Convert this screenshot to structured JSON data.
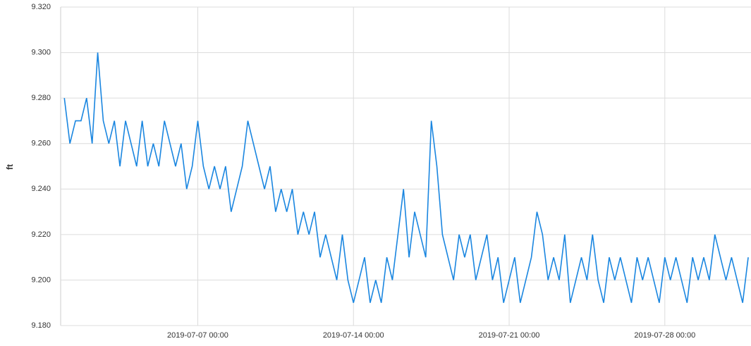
{
  "chart_data": {
    "type": "line",
    "y_label": "ft",
    "x": [
      "2019-07-01 00:00",
      "2019-07-01 06:00",
      "2019-07-01 12:00",
      "2019-07-01 18:00",
      "2019-07-02 00:00",
      "2019-07-02 06:00",
      "2019-07-02 12:00",
      "2019-07-02 18:00",
      "2019-07-03 00:00",
      "2019-07-03 06:00",
      "2019-07-03 12:00",
      "2019-07-03 18:00",
      "2019-07-04 00:00",
      "2019-07-04 06:00",
      "2019-07-04 12:00",
      "2019-07-04 18:00",
      "2019-07-05 00:00",
      "2019-07-05 06:00",
      "2019-07-05 12:00",
      "2019-07-05 18:00",
      "2019-07-06 00:00",
      "2019-07-06 06:00",
      "2019-07-06 12:00",
      "2019-07-06 18:00",
      "2019-07-07 00:00",
      "2019-07-07 06:00",
      "2019-07-07 12:00",
      "2019-07-07 18:00",
      "2019-07-08 00:00",
      "2019-07-08 06:00",
      "2019-07-08 12:00",
      "2019-07-08 18:00",
      "2019-07-09 00:00",
      "2019-07-09 06:00",
      "2019-07-09 12:00",
      "2019-07-09 18:00",
      "2019-07-10 00:00",
      "2019-07-10 06:00",
      "2019-07-10 12:00",
      "2019-07-10 18:00",
      "2019-07-11 00:00",
      "2019-07-11 06:00",
      "2019-07-11 12:00",
      "2019-07-11 18:00",
      "2019-07-12 00:00",
      "2019-07-12 06:00",
      "2019-07-12 12:00",
      "2019-07-12 18:00",
      "2019-07-13 00:00",
      "2019-07-13 06:00",
      "2019-07-13 12:00",
      "2019-07-13 18:00",
      "2019-07-14 00:00",
      "2019-07-14 06:00",
      "2019-07-14 12:00",
      "2019-07-14 18:00",
      "2019-07-15 00:00",
      "2019-07-15 06:00",
      "2019-07-15 12:00",
      "2019-07-15 18:00",
      "2019-07-16 00:00",
      "2019-07-16 06:00",
      "2019-07-16 12:00",
      "2019-07-16 18:00",
      "2019-07-17 00:00",
      "2019-07-17 06:00",
      "2019-07-17 12:00",
      "2019-07-17 18:00",
      "2019-07-18 00:00",
      "2019-07-18 06:00",
      "2019-07-18 12:00",
      "2019-07-18 18:00",
      "2019-07-19 00:00",
      "2019-07-19 06:00",
      "2019-07-19 12:00",
      "2019-07-19 18:00",
      "2019-07-20 00:00",
      "2019-07-20 06:00",
      "2019-07-20 12:00",
      "2019-07-20 18:00",
      "2019-07-21 00:00",
      "2019-07-21 06:00",
      "2019-07-21 12:00",
      "2019-07-21 18:00",
      "2019-07-22 00:00",
      "2019-07-22 06:00",
      "2019-07-22 12:00",
      "2019-07-22 18:00",
      "2019-07-23 00:00",
      "2019-07-23 06:00",
      "2019-07-23 12:00",
      "2019-07-23 18:00",
      "2019-07-24 00:00",
      "2019-07-24 06:00",
      "2019-07-24 12:00",
      "2019-07-24 18:00",
      "2019-07-25 00:00",
      "2019-07-25 06:00",
      "2019-07-25 12:00",
      "2019-07-25 18:00",
      "2019-07-26 00:00",
      "2019-07-26 06:00",
      "2019-07-26 12:00",
      "2019-07-26 18:00",
      "2019-07-27 00:00",
      "2019-07-27 06:00",
      "2019-07-27 12:00",
      "2019-07-27 18:00",
      "2019-07-28 00:00",
      "2019-07-28 06:00",
      "2019-07-28 12:00",
      "2019-07-28 18:00",
      "2019-07-29 00:00",
      "2019-07-29 06:00",
      "2019-07-29 12:00",
      "2019-07-29 18:00",
      "2019-07-30 00:00",
      "2019-07-30 06:00",
      "2019-07-30 12:00",
      "2019-07-30 18:00",
      "2019-07-31 00:00",
      "2019-07-31 06:00",
      "2019-07-31 12:00",
      "2019-07-31 18:00"
    ],
    "series": [
      {
        "color": "#1a86e0",
        "values": [
          9.28,
          9.26,
          9.27,
          9.27,
          9.28,
          9.26,
          9.3,
          9.27,
          9.26,
          9.27,
          9.25,
          9.27,
          9.26,
          9.25,
          9.27,
          9.25,
          9.26,
          9.25,
          9.27,
          9.26,
          9.25,
          9.26,
          9.24,
          9.25,
          9.27,
          9.25,
          9.24,
          9.25,
          9.24,
          9.25,
          9.23,
          9.24,
          9.25,
          9.27,
          9.26,
          9.25,
          9.24,
          9.25,
          9.23,
          9.24,
          9.23,
          9.24,
          9.22,
          9.23,
          9.22,
          9.23,
          9.21,
          9.22,
          9.21,
          9.2,
          9.22,
          9.2,
          9.19,
          9.2,
          9.21,
          9.19,
          9.2,
          9.19,
          9.21,
          9.2,
          9.22,
          9.24,
          9.21,
          9.23,
          9.22,
          9.21,
          9.27,
          9.25,
          9.22,
          9.21,
          9.2,
          9.22,
          9.21,
          9.22,
          9.2,
          9.21,
          9.22,
          9.2,
          9.21,
          9.19,
          9.2,
          9.21,
          9.19,
          9.2,
          9.21,
          9.23,
          9.22,
          9.2,
          9.21,
          9.2,
          9.22,
          9.19,
          9.2,
          9.21,
          9.2,
          9.22,
          9.2,
          9.19,
          9.21,
          9.2,
          9.21,
          9.2,
          9.19,
          9.21,
          9.2,
          9.21,
          9.2,
          9.19,
          9.21,
          9.2,
          9.21,
          9.2,
          9.19,
          9.21,
          9.2,
          9.21,
          9.2,
          9.22,
          9.21,
          9.2,
          9.21,
          9.2,
          9.19,
          9.21
        ]
      }
    ],
    "xlim": [
      "2019-06-30 20:00",
      "2019-07-31 21:00"
    ],
    "xticks": [
      "2019-07-07 00:00",
      "2019-07-14 00:00",
      "2019-07-21 00:00",
      "2019-07-28 00:00"
    ],
    "ylim": [
      9.18,
      9.32
    ],
    "yticks": [
      {
        "value": 9.18,
        "label": "9.180"
      },
      {
        "value": 9.2,
        "label": "9.200"
      },
      {
        "value": 9.22,
        "label": "9.220"
      },
      {
        "value": 9.24,
        "label": "9.240"
      },
      {
        "value": 9.26,
        "label": "9.260"
      },
      {
        "value": 9.28,
        "label": "9.280"
      },
      {
        "value": 9.3,
        "label": "9.300"
      },
      {
        "value": 9.32,
        "label": "9.320"
      }
    ],
    "grid": true
  }
}
